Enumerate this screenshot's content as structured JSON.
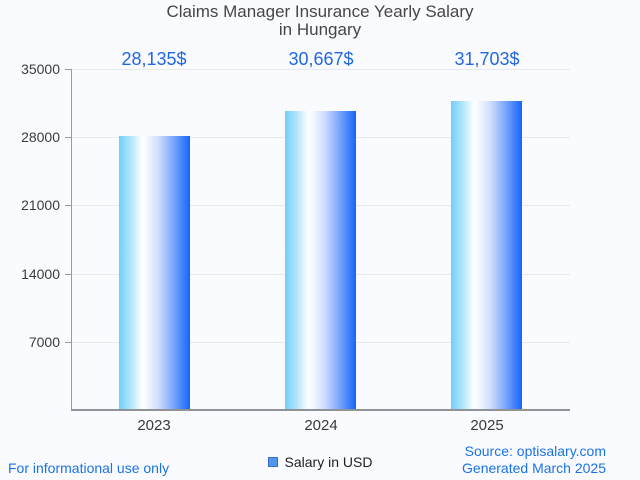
{
  "title": {
    "line1": "Claims Manager Insurance Yearly Salary",
    "line2": "in Hungary"
  },
  "chart_data": {
    "type": "bar",
    "title": "Claims Manager Insurance Yearly Salary in Hungary",
    "categories": [
      "2023",
      "2024",
      "2025"
    ],
    "series": [
      {
        "name": "Salary in USD",
        "values": [
          28135,
          30667,
          31703
        ]
      }
    ],
    "value_labels": [
      "28,135$",
      "30,667$",
      "31,703$"
    ],
    "xlabel": "",
    "ylabel": "",
    "ylim": [
      0,
      35000
    ],
    "yticks": [
      7000,
      14000,
      21000,
      28000,
      35000
    ],
    "grid": true,
    "legend_position": "bottom",
    "bar_gradient": [
      "#6fd0f8",
      "#ffffff",
      "#1565fb"
    ]
  },
  "legend": {
    "label": "Salary in USD",
    "swatch_fill": "#4f97e8",
    "swatch_border": "#3a6bc9"
  },
  "footer": {
    "disclaimer": "For informational use only",
    "source": "Source: optisalary.com",
    "generated": "Generated March 2025"
  },
  "colors": {
    "background": "#fafbfe",
    "accent_blue": "#1a73e8",
    "value_label_blue": "#2267e2",
    "title_gray": "#464646",
    "gridline": "#e7e9ec",
    "axis": "#8f9297"
  }
}
